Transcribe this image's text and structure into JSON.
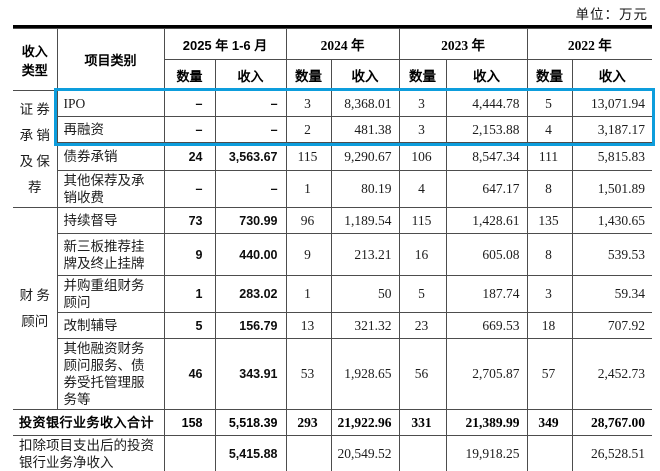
{
  "unit_label": "单位：万元",
  "accent_color": "#0d9ddc",
  "table": {
    "header": {
      "income_type": "收入\n类型",
      "category": "项目类别",
      "qty_label": "数量",
      "income_label": "收入",
      "periods": [
        "2025 年 1-6 月",
        "2024 年",
        "2023 年",
        "2022 年"
      ]
    },
    "groups": [
      {
        "name": "证券承销及保荐",
        "display": "证 券\n承 销\n及 保\n荐",
        "rows": [
          {
            "label": "IPO",
            "highlighted": true,
            "values": [
              "–",
              "–",
              "3",
              "8,368.01",
              "3",
              "4,444.78",
              "5",
              "13,071.94"
            ]
          },
          {
            "label": "再融资",
            "highlighted": true,
            "values": [
              "–",
              "–",
              "2",
              "481.38",
              "3",
              "2,153.88",
              "4",
              "3,187.17"
            ]
          },
          {
            "label": "债券承销",
            "values": [
              "24",
              "3,563.67",
              "115",
              "9,290.67",
              "106",
              "8,547.34",
              "111",
              "5,815.83"
            ]
          },
          {
            "label": "其他保荐及承\n销收费",
            "values": [
              "–",
              "–",
              "1",
              "80.19",
              "4",
              "647.17",
              "8",
              "1,501.89"
            ]
          }
        ]
      },
      {
        "name": "财务顾问",
        "display": "财 务\n顾问",
        "rows": [
          {
            "label": "持续督导",
            "values": [
              "73",
              "730.99",
              "96",
              "1,189.54",
              "115",
              "1,428.61",
              "135",
              "1,430.65"
            ]
          },
          {
            "label": "新三板推荐挂\n牌及终止挂牌",
            "values": [
              "9",
              "440.00",
              "9",
              "213.21",
              "16",
              "605.08",
              "8",
              "539.53"
            ]
          },
          {
            "label": "并购重组财务\n顾问",
            "values": [
              "1",
              "283.02",
              "1",
              "50",
              "5",
              "187.74",
              "3",
              "59.34"
            ]
          },
          {
            "label": "改制辅导",
            "values": [
              "5",
              "156.79",
              "13",
              "321.32",
              "23",
              "669.53",
              "18",
              "707.92"
            ]
          },
          {
            "label": "其他融资财务\n顾问服务、债\n券受托管理服\n务等",
            "values": [
              "46",
              "343.91",
              "53",
              "1,928.65",
              "56",
              "2,705.87",
              "57",
              "2,452.73"
            ]
          }
        ]
      }
    ],
    "footer_rows": [
      {
        "label": "投资银行业务收入合计",
        "bold": true,
        "values": [
          "158",
          "5,518.39",
          "293",
          "21,922.96",
          "331",
          "21,389.99",
          "349",
          "28,767.00"
        ]
      },
      {
        "label": "扣除项目支出后的投资\n银行业务净收入",
        "bold": false,
        "values": [
          "",
          "5,415.88",
          "",
          "20,549.52",
          "",
          "19,918.25",
          "",
          "26,528.51"
        ]
      }
    ]
  }
}
